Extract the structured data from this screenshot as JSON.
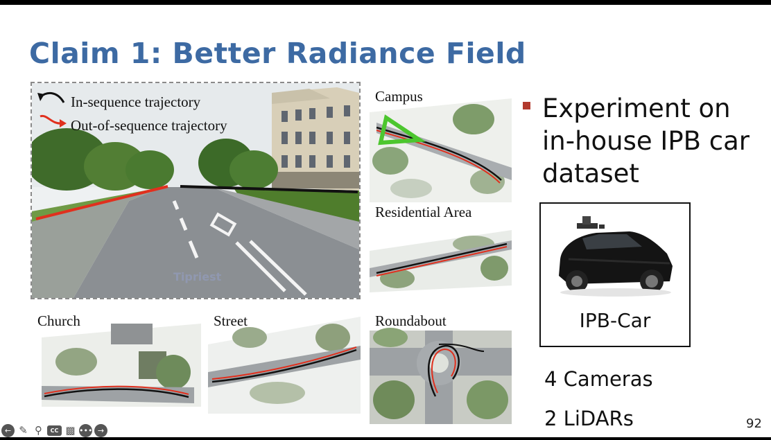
{
  "slide": {
    "title": "Claim 1: Better Radiance Field",
    "legend": {
      "in_sequence": "In-sequence trajectory",
      "out_of_sequence": "Out-of-sequence trajectory"
    },
    "watermark": "Tipriest",
    "scenes": {
      "campus": "Campus",
      "residential": "Residential Area",
      "church": "Church",
      "street": "Street",
      "roundabout": "Roundabout"
    },
    "bullet": "Experiment on in-house IPB car dataset",
    "car_label": "IPB-Car",
    "specs": [
      "4 Cameras",
      "2 LiDARs"
    ],
    "page_number": "92"
  },
  "colors": {
    "title": "#3d6aa3",
    "bullet_marker": "#b23a2e",
    "in_sequence_line": "#111111",
    "out_of_sequence_line": "#e0301e",
    "campus_triangle": "#4cc62e"
  },
  "toolbar": {
    "icons": [
      "prev-icon",
      "pen-icon",
      "zoom-icon",
      "captions-icon",
      "camera-icon",
      "more-icon",
      "next-icon"
    ]
  }
}
